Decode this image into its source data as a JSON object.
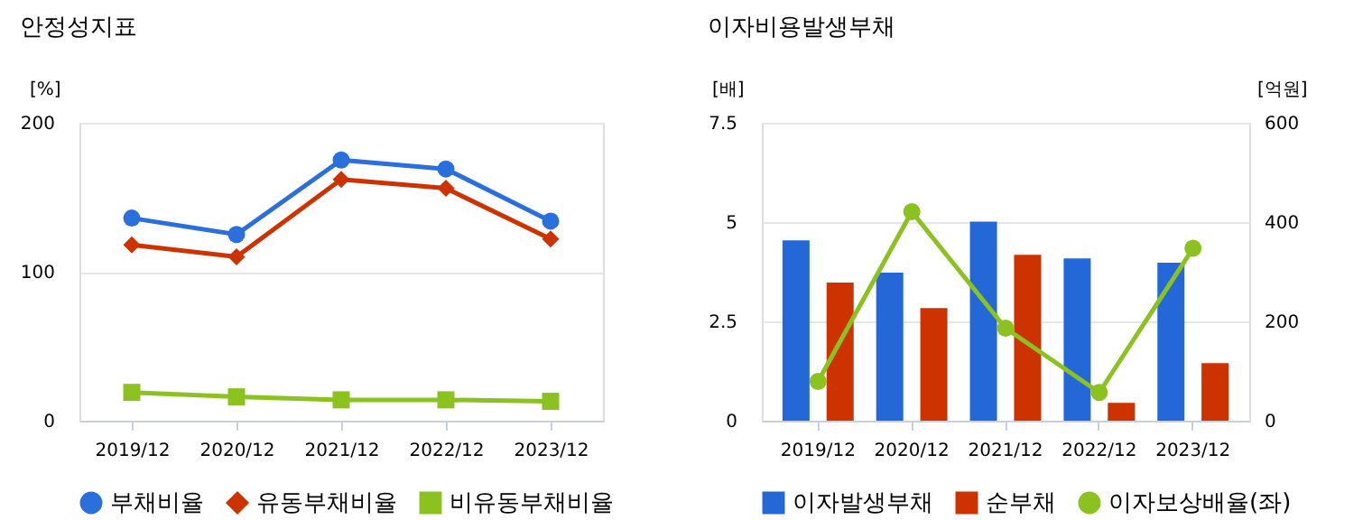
{
  "chart_data": [
    {
      "type": "line",
      "title": "안정성지표",
      "ylabel": "[%]",
      "categories": [
        "2019/12",
        "2020/12",
        "2021/12",
        "2022/12",
        "2023/12"
      ],
      "ylim": [
        0,
        200
      ],
      "yticks": [
        0,
        100,
        200
      ],
      "grid": "y",
      "legend": "bottom",
      "series": [
        {
          "name": "부채비율",
          "color": "#2a6fdb",
          "marker": "circle",
          "values": [
            136,
            125,
            175,
            169,
            134
          ]
        },
        {
          "name": "유동부채비율",
          "color": "#cc3300",
          "marker": "diamond",
          "values": [
            118,
            110,
            162,
            156,
            122
          ]
        },
        {
          "name": "비유동부채비율",
          "color": "#8cc21f",
          "marker": "square",
          "values": [
            19,
            16,
            14,
            14,
            13
          ]
        }
      ]
    },
    {
      "type": "bar",
      "title": "이자비용발생부채",
      "ylabel": "[배]",
      "y2label": "[억원]",
      "categories": [
        "2019/12",
        "2020/12",
        "2021/12",
        "2022/12",
        "2023/12"
      ],
      "ylim": [
        0,
        7.5
      ],
      "yticks": [
        0,
        2.5,
        5,
        7.5
      ],
      "y2lim": [
        0,
        600
      ],
      "y2ticks": [
        0,
        200,
        400,
        600
      ],
      "grid": "y",
      "legend": "bottom",
      "series": [
        {
          "name": "이자발생부채",
          "color": "#2468d8",
          "axis": "y2",
          "values": [
            363,
            298,
            401,
            327,
            318
          ]
        },
        {
          "name": "순부채",
          "color": "#cc3300",
          "axis": "y2",
          "values": [
            278,
            227,
            334,
            36,
            116
          ]
        },
        {
          "name": "이자보상배율(좌)",
          "color": "#8cc21f",
          "type": "line",
          "marker": "circle",
          "values": [
            0.99,
            5.26,
            2.33,
            0.71,
            4.34
          ]
        }
      ]
    }
  ]
}
